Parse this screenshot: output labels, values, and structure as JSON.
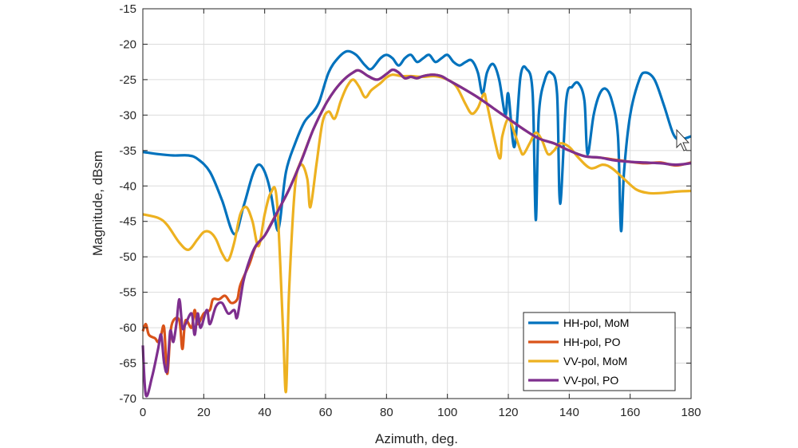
{
  "chart_data": {
    "type": "line",
    "title": "",
    "xlabel": "Azimuth, deg.",
    "ylabel": "Magnitude, dBsm",
    "xlim": [
      0,
      180
    ],
    "ylim": [
      -70,
      -15
    ],
    "xticks": [
      0,
      20,
      40,
      60,
      80,
      100,
      120,
      140,
      160,
      180
    ],
    "yticks": [
      -70,
      -65,
      -60,
      -55,
      -50,
      -45,
      -40,
      -35,
      -30,
      -25,
      -20,
      -15
    ],
    "grid": true,
    "legend_position": "bottom-right",
    "series": [
      {
        "name": "HH-pol, MoM",
        "color": "#0072BD",
        "x": [
          0,
          5,
          10,
          15,
          18,
          22,
          26,
          30,
          33,
          36,
          38,
          40,
          42,
          44,
          45,
          47,
          50,
          53,
          56,
          58,
          61,
          64,
          67,
          70,
          73,
          75,
          78,
          80,
          82,
          84,
          86,
          88,
          90,
          92,
          94,
          96,
          98,
          100,
          102,
          104,
          106,
          108,
          110,
          111.5,
          113,
          115,
          117,
          119,
          120,
          122,
          124,
          126,
          128,
          129,
          130,
          132,
          134,
          136,
          137,
          139,
          141,
          143,
          145,
          146,
          148,
          150,
          152,
          154,
          156,
          157,
          158,
          160,
          163,
          165,
          168,
          171,
          174,
          176,
          178,
          180
        ],
        "y": [
          -35.2,
          -35.5,
          -35.7,
          -35.7,
          -36.2,
          -38,
          -42,
          -46.8,
          -43,
          -38.5,
          -37,
          -38,
          -41,
          -46,
          -45,
          -38,
          -34,
          -31,
          -29.5,
          -28,
          -24,
          -22,
          -21,
          -21.5,
          -23,
          -23.5,
          -22,
          -21.5,
          -22,
          -23,
          -22,
          -21.5,
          -22.5,
          -22,
          -21.5,
          -22.5,
          -22,
          -21.5,
          -22.5,
          -23,
          -22.5,
          -22.3,
          -24,
          -27,
          -24,
          -22.8,
          -25,
          -30,
          -27,
          -34.5,
          -24.5,
          -23.5,
          -27,
          -44.8,
          -30,
          -25,
          -24,
          -27,
          -42.5,
          -28,
          -26,
          -25.5,
          -28,
          -35.5,
          -30,
          -27,
          -26.3,
          -28,
          -33,
          -46.3,
          -38,
          -30,
          -25,
          -24,
          -25,
          -28.5,
          -32.5,
          -33.5,
          -33.3,
          -33
        ]
      },
      {
        "name": "HH-pol, PO",
        "color": "#D95319",
        "x": [
          0,
          1,
          2,
          4,
          5,
          6,
          7,
          8,
          9,
          10,
          12,
          13,
          14,
          16,
          17,
          18,
          20,
          22,
          23,
          25,
          27,
          29,
          31,
          32,
          35,
          37,
          40,
          42,
          45,
          48,
          52,
          56,
          60,
          63,
          66,
          69,
          71,
          74,
          77,
          80,
          82,
          84,
          86,
          88,
          90,
          92,
          95,
          98,
          100,
          105,
          110,
          115,
          120,
          125,
          130,
          135,
          140,
          145,
          150,
          155,
          160,
          165,
          170,
          175,
          180
        ],
        "y": [
          -60.5,
          -59.5,
          -61,
          -61.5,
          -62,
          -61,
          -60,
          -66.5,
          -61,
          -59,
          -59,
          -63,
          -59,
          -60,
          -57.5,
          -59.5,
          -58,
          -57.5,
          -56,
          -56,
          -55.5,
          -56.5,
          -56,
          -54,
          -51,
          -48.6,
          -47,
          -45.4,
          -43,
          -40.5,
          -36.4,
          -32,
          -28.5,
          -26.5,
          -25,
          -24,
          -23.7,
          -24.5,
          -25,
          -24.2,
          -23.6,
          -24,
          -24.8,
          -24.6,
          -24.8,
          -24.5,
          -24.3,
          -24.5,
          -25,
          -26.2,
          -27.5,
          -29,
          -30.5,
          -32,
          -33.3,
          -34,
          -35,
          -35.8,
          -36,
          -36.3,
          -36.6,
          -36.8,
          -36.7,
          -37.1,
          -36.7
        ]
      },
      {
        "name": "VV-pol, MoM",
        "color": "#EDB120",
        "x": [
          0,
          5,
          8,
          12,
          15,
          18,
          20,
          22,
          24,
          26,
          28,
          30,
          32,
          34,
          36,
          38,
          40,
          42,
          44,
          46,
          47,
          48,
          50,
          52,
          54,
          55,
          57,
          59,
          61,
          63,
          65,
          67,
          69,
          71,
          73,
          75,
          78,
          80,
          82,
          85,
          88,
          92,
          96,
          100,
          103,
          106,
          108,
          110,
          112,
          113,
          117,
          118,
          120,
          122,
          124,
          125,
          127,
          129,
          131,
          133,
          135,
          137,
          140,
          143,
          147,
          151,
          154,
          158,
          162,
          166,
          170,
          175,
          180
        ],
        "y": [
          -44,
          -44.5,
          -45.5,
          -48,
          -49,
          -47.5,
          -46.5,
          -46.5,
          -47.5,
          -49.5,
          -50.5,
          -48,
          -44,
          -43,
          -45,
          -48.5,
          -44,
          -41,
          -42,
          -60,
          -69,
          -55,
          -40,
          -37,
          -39,
          -43,
          -37,
          -31,
          -29.5,
          -30.5,
          -28,
          -26,
          -25,
          -26,
          -27.5,
          -26.5,
          -25.5,
          -24.7,
          -24.3,
          -24.5,
          -24.5,
          -24.6,
          -24.5,
          -25,
          -26,
          -28.5,
          -29.8,
          -29,
          -27,
          -28.5,
          -36,
          -33,
          -30.5,
          -32.5,
          -35,
          -35.5,
          -34,
          -32.5,
          -33.5,
          -35.5,
          -35,
          -34,
          -34.5,
          -36,
          -37.5,
          -37,
          -37.5,
          -39,
          -40.5,
          -41,
          -41,
          -40.8,
          -40.7
        ]
      },
      {
        "name": "VV-pol, PO",
        "color": "#7E2F8E",
        "x": [
          0,
          1,
          3,
          5,
          6,
          7,
          8,
          9,
          10,
          11,
          12,
          13,
          14,
          16,
          17,
          18,
          19,
          21,
          22,
          24,
          26,
          28,
          30,
          31,
          33,
          35,
          37,
          40,
          42,
          45,
          48,
          52,
          56,
          60,
          63,
          66,
          69,
          71,
          74,
          77,
          80,
          82,
          84,
          86,
          88,
          90,
          92,
          95,
          98,
          100,
          105,
          110,
          115,
          120,
          125,
          130,
          135,
          140,
          145,
          150,
          155,
          160,
          165,
          170,
          175,
          180
        ],
        "y": [
          -62.5,
          -69.5,
          -67,
          -63,
          -61,
          -65,
          -66,
          -60.5,
          -62,
          -59.5,
          -56,
          -60,
          -59.5,
          -58,
          -61,
          -58,
          -60,
          -57.5,
          -59.5,
          -57,
          -56.5,
          -58,
          -57.5,
          -58.5,
          -53.5,
          -50.5,
          -48.5,
          -47,
          -45.5,
          -43,
          -40.5,
          -36.5,
          -32,
          -28.5,
          -26.5,
          -25,
          -24,
          -23.7,
          -24.5,
          -25,
          -24.2,
          -23.6,
          -24,
          -24.8,
          -24.6,
          -24.8,
          -24.5,
          -24.3,
          -24.5,
          -25,
          -26.2,
          -27.5,
          -29,
          -30.5,
          -32,
          -33.3,
          -34,
          -35,
          -35.8,
          -36,
          -36.4,
          -36.6,
          -36.7,
          -36.8,
          -37,
          -36.8
        ]
      }
    ]
  }
}
